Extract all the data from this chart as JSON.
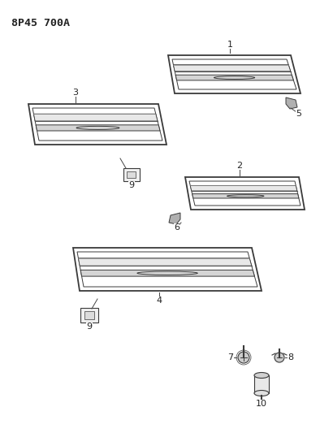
{
  "title": "8P45 700A",
  "bg_color": "#ffffff",
  "line_color": "#3a3a3a",
  "label_color": "#222222",
  "fig_w": 3.94,
  "fig_h": 5.33,
  "dpi": 100
}
